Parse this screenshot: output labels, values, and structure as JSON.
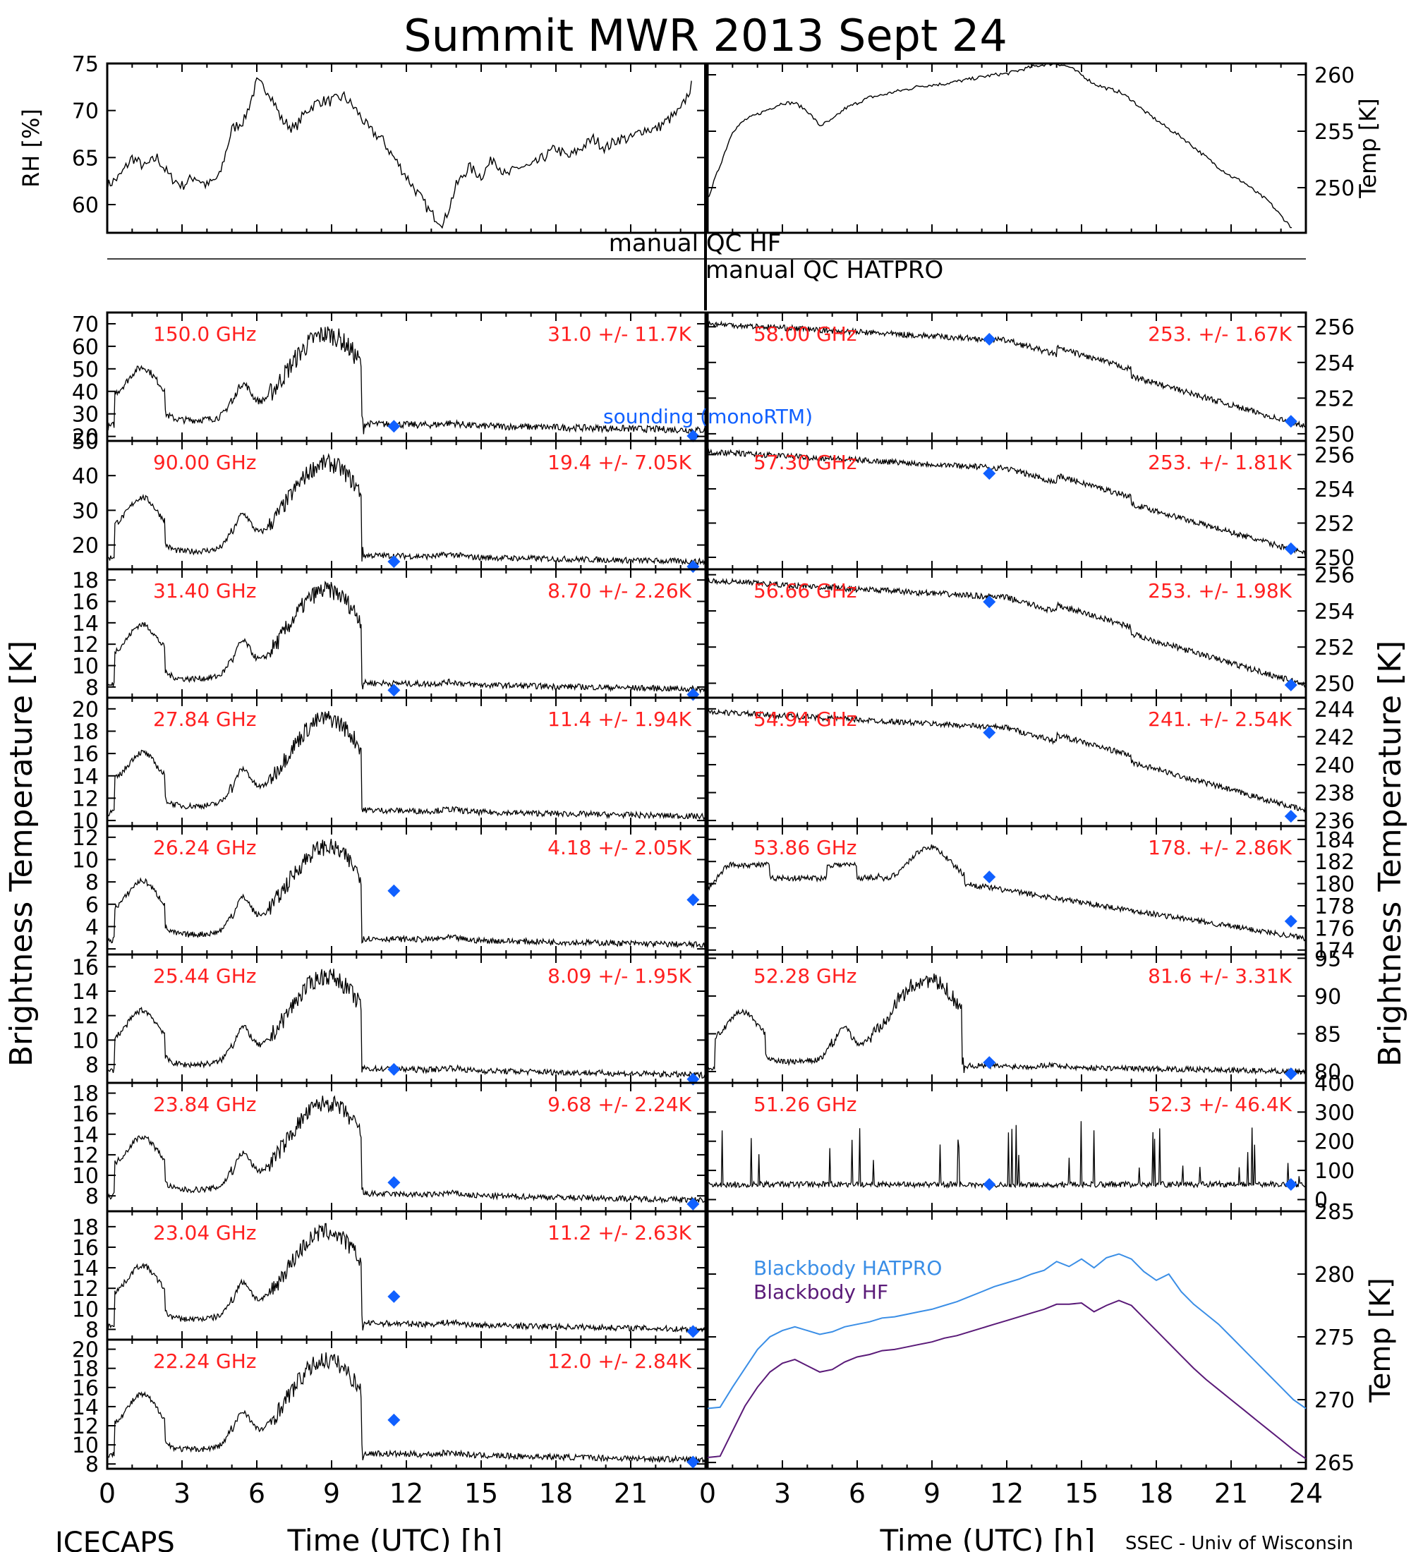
{
  "title": "Summit MWR 2013 Sept 24",
  "footer": {
    "left": "ICECAPS",
    "right": "SSEC - Univ of Wisconsin"
  },
  "colors": {
    "trace": "#000000",
    "channel_label": "#ff2020",
    "sounding": "#1060ff",
    "bb_hatpro": "#3a8ee6",
    "bb_hf": "#5a1a78"
  },
  "left_axis_label": "Brightness Temperature [K]",
  "right_axis_label": "Brightness Temperature [K]",
  "x_axis": {
    "label": "Time (UTC) [h]",
    "ticks": [
      0,
      3,
      6,
      9,
      12,
      15,
      18,
      21
    ],
    "ticks_right": [
      0,
      3,
      6,
      9,
      12,
      15,
      18,
      21,
      24
    ],
    "range": [
      0,
      24
    ]
  },
  "qc": {
    "hf": "manual QC HF",
    "hatpro": "manual QC HATPRO"
  },
  "sounding_label": "sounding (monoRTM)",
  "chart_data": [
    {
      "type": "line",
      "id": "rh",
      "ylabel": "RH [%]",
      "ylim": [
        57,
        75
      ],
      "yticks": [
        60,
        65,
        70,
        75
      ],
      "x": [
        0,
        0.5,
        1,
        1.5,
        2,
        2.5,
        3,
        3.5,
        4,
        4.5,
        5,
        5.5,
        6,
        6.5,
        7,
        7.5,
        8,
        8.5,
        9,
        9.5,
        10,
        10.5,
        11,
        11.5,
        12,
        12.5,
        13,
        13.5,
        14,
        14.5,
        15,
        15.5,
        16,
        16.5,
        17,
        17.5,
        18,
        18.5,
        19,
        19.5,
        20,
        20.5,
        21,
        21.5,
        22,
        22.5,
        23,
        23.5
      ],
      "values": [
        62,
        63,
        65,
        64,
        65,
        63,
        62,
        63,
        62,
        63,
        68,
        69,
        73,
        72,
        69,
        68,
        70,
        71,
        71,
        71.5,
        70,
        68,
        67,
        65,
        63,
        61,
        59,
        58,
        62,
        64,
        63,
        65,
        63,
        64,
        64,
        65,
        66,
        65,
        66,
        67,
        66,
        67,
        67,
        68,
        68,
        69,
        70,
        73
      ]
    },
    {
      "type": "line",
      "id": "air_temp",
      "ylabel": "Temp [K]",
      "ylim": [
        246,
        261
      ],
      "yticks": [
        250,
        255,
        260
      ],
      "x": [
        0,
        0.5,
        1,
        1.5,
        2,
        2.5,
        3,
        3.5,
        4,
        4.5,
        5,
        5.5,
        6,
        6.5,
        7,
        7.5,
        8,
        8.5,
        9,
        9.5,
        10,
        10.5,
        11,
        11.5,
        12,
        12.5,
        13,
        13.5,
        14,
        14.5,
        15,
        15.5,
        16,
        16.5,
        17,
        17.5,
        18,
        18.5,
        19,
        19.5,
        20,
        20.5,
        21,
        21.5,
        22,
        22.5,
        23,
        23.5
      ],
      "values": [
        249,
        252,
        255,
        256,
        256.5,
        257,
        257.5,
        257.5,
        256.8,
        255.5,
        256,
        257,
        257.5,
        258,
        258.2,
        258.5,
        258.7,
        259,
        259.1,
        259.2,
        259.4,
        259.6,
        259.8,
        260,
        260.1,
        260.4,
        260.7,
        260.9,
        261,
        260.7,
        260,
        259.2,
        258.8,
        258.5,
        257.8,
        256.8,
        256,
        255.2,
        254.5,
        253.6,
        252.7,
        251.8,
        251,
        250.5,
        249.6,
        248.8,
        247.5,
        246.3
      ]
    },
    {
      "type": "line",
      "id": "150.0",
      "side": "left",
      "freq_label": "150.0 GHz",
      "stat": "31.0 +/- 11.7K",
      "ylim": [
        18,
        75
      ],
      "yticks": [
        20,
        30,
        40,
        50,
        60,
        70
      ],
      "shape": "wet",
      "lo": 21,
      "hi": 72,
      "noise": 0.06,
      "sounding": [
        [
          11.5,
          24.5
        ],
        [
          23.5,
          20.2
        ]
      ]
    },
    {
      "type": "line",
      "id": "90.00",
      "side": "left",
      "freq_label": "90.00 GHz",
      "stat": "19.4 +/- 7.05K",
      "ylim": [
        13,
        50
      ],
      "yticks": [
        20,
        30,
        40,
        50
      ],
      "shape": "wet",
      "lo": 14,
      "hi": 48,
      "noise": 0.05,
      "sounding": [
        [
          11.5,
          15.2
        ],
        [
          23.5,
          13.8
        ]
      ]
    },
    {
      "type": "line",
      "id": "31.40",
      "side": "left",
      "freq_label": "31.40 GHz",
      "stat": "8.70 +/- 2.26K",
      "ylim": [
        7,
        19
      ],
      "yticks": [
        8,
        10,
        12,
        14,
        16,
        18
      ],
      "shape": "wet",
      "lo": 7.4,
      "hi": 18.5,
      "noise": 0.05,
      "sounding": [
        [
          11.5,
          7.7
        ],
        [
          23.5,
          7.3
        ]
      ]
    },
    {
      "type": "line",
      "id": "27.84",
      "side": "left",
      "freq_label": "27.84 GHz",
      "stat": "11.4 +/- 1.94K",
      "ylim": [
        9.5,
        21
      ],
      "yticks": [
        10,
        12,
        14,
        16,
        18,
        20
      ],
      "shape": "wet",
      "lo": 10,
      "hi": 20.5,
      "noise": 0.05,
      "sounding": []
    },
    {
      "type": "line",
      "id": "26.24",
      "side": "left",
      "freq_label": "26.24 GHz",
      "stat": "4.18 +/- 2.05K",
      "ylim": [
        1.5,
        13
      ],
      "yticks": [
        2,
        4,
        6,
        8,
        10,
        12
      ],
      "shape": "wet",
      "lo": 2,
      "hi": 12.5,
      "noise": 0.05,
      "sounding": [
        [
          11.5,
          7.2
        ],
        [
          23.5,
          6.4
        ]
      ]
    },
    {
      "type": "line",
      "id": "25.44",
      "side": "left",
      "freq_label": "25.44 GHz",
      "stat": "8.09 +/- 1.95K",
      "ylim": [
        6.5,
        17
      ],
      "yticks": [
        8,
        10,
        12,
        14,
        16
      ],
      "shape": "wet",
      "lo": 6.8,
      "hi": 16.5,
      "noise": 0.05,
      "sounding": [
        [
          11.5,
          7.6
        ],
        [
          23.5,
          6.8
        ]
      ]
    },
    {
      "type": "line",
      "id": "23.84",
      "side": "left",
      "freq_label": "23.84 GHz",
      "stat": "9.68 +/- 2.24K",
      "ylim": [
        6.5,
        19
      ],
      "yticks": [
        8,
        10,
        12,
        14,
        16,
        18
      ],
      "shape": "wet",
      "lo": 7.2,
      "hi": 18.5,
      "noise": 0.05,
      "sounding": [
        [
          11.5,
          9.3
        ],
        [
          23.5,
          7.2
        ]
      ]
    },
    {
      "type": "line",
      "id": "23.04",
      "side": "left",
      "freq_label": "23.04 GHz",
      "stat": "11.2 +/- 2.63K",
      "ylim": [
        7,
        19.5
      ],
      "yticks": [
        8,
        10,
        12,
        14,
        16,
        18
      ],
      "shape": "wet",
      "lo": 7.6,
      "hi": 19,
      "noise": 0.05,
      "sounding": [
        [
          11.5,
          11.2
        ],
        [
          23.5,
          7.8
        ]
      ]
    },
    {
      "type": "line",
      "id": "22.24",
      "side": "left",
      "freq_label": "22.24 GHz",
      "stat": "12.0 +/- 2.84K",
      "ylim": [
        7.5,
        21
      ],
      "yticks": [
        8,
        10,
        12,
        14,
        16,
        18,
        20
      ],
      "shape": "wet",
      "lo": 8,
      "hi": 20.5,
      "noise": 0.05,
      "sounding": [
        [
          11.5,
          12.6
        ],
        [
          23.5,
          8.2
        ]
      ]
    },
    {
      "type": "line",
      "id": "58.00",
      "side": "right",
      "freq_label": "58.00 GHz",
      "stat": "253. +/- 1.67K",
      "ylim": [
        249.6,
        256.8
      ],
      "yticks": [
        250,
        252,
        254,
        256
      ],
      "shape": "cool",
      "lo": 250,
      "hi": 256.5,
      "noise": 0.05,
      "sounding": [
        [
          11.3,
          255.3
        ],
        [
          23.4,
          250.7
        ]
      ]
    },
    {
      "type": "line",
      "id": "57.30",
      "side": "right",
      "freq_label": "57.30 GHz",
      "stat": "253. +/- 1.81K",
      "ylim": [
        249.3,
        256.8
      ],
      "yticks": [
        250,
        252,
        254,
        256
      ],
      "shape": "cool",
      "lo": 249.8,
      "hi": 256.5,
      "noise": 0.05,
      "sounding": [
        [
          11.3,
          254.9
        ],
        [
          23.4,
          250.5
        ]
      ]
    },
    {
      "type": "line",
      "id": "56.66",
      "side": "right",
      "freq_label": "56.66 GHz",
      "stat": "253. +/- 1.98K",
      "ylim": [
        249.2,
        256.3
      ],
      "yticks": [
        250,
        252,
        254,
        256
      ],
      "shape": "cool",
      "lo": 249.5,
      "hi": 256,
      "noise": 0.05,
      "sounding": [
        [
          11.3,
          254.5
        ],
        [
          23.4,
          249.9
        ]
      ]
    },
    {
      "type": "line",
      "id": "54.94",
      "side": "right",
      "freq_label": "54.94 GHz",
      "stat": "241. +/- 2.54K",
      "ylim": [
        235.6,
        244.8
      ],
      "yticks": [
        236,
        238,
        240,
        242,
        244
      ],
      "shape": "cool",
      "lo": 236.2,
      "hi": 244.2,
      "noise": 0.05,
      "sounding": [
        [
          11.3,
          242.3
        ],
        [
          23.4,
          236.3
        ]
      ]
    },
    {
      "type": "line",
      "id": "53.86",
      "side": "right",
      "freq_label": "53.86 GHz",
      "stat": "178. +/- 2.86K",
      "ylim": [
        173.6,
        185.2
      ],
      "yticks": [
        174,
        176,
        178,
        180,
        182,
        184
      ],
      "shape": "mid",
      "lo": 174.5,
      "hi": 184.5,
      "noise": 0.05,
      "sounding": [
        [
          11.3,
          180.6
        ],
        [
          23.4,
          176.6
        ]
      ]
    },
    {
      "type": "line",
      "id": "52.28",
      "side": "right",
      "freq_label": "52.28 GHz",
      "stat": "81.6 +/- 3.31K",
      "ylim": [
        78.5,
        95.5
      ],
      "yticks": [
        80,
        85,
        90,
        95
      ],
      "shape": "wet",
      "lo": 79.5,
      "hi": 94,
      "noise": 0.05,
      "sounding": [
        [
          11.3,
          81.2
        ],
        [
          23.4,
          79.7
        ]
      ]
    },
    {
      "type": "line",
      "id": "51.26",
      "side": "right",
      "freq_label": "51.26 GHz",
      "stat": "52.3 +/- 46.4K",
      "ylim": [
        -40,
        400
      ],
      "yticks": [
        0,
        100,
        200,
        300,
        400
      ],
      "shape": "spiky",
      "lo": 40,
      "hi": 60,
      "noise": 0.05,
      "sounding": [
        [
          11.3,
          52
        ],
        [
          23.4,
          52
        ]
      ]
    },
    {
      "type": "line",
      "id": "blackbody",
      "ylabel": "Temp [K]",
      "ylim": [
        264.5,
        285
      ],
      "yticks": [
        265,
        270,
        275,
        280,
        285
      ],
      "x": [
        0,
        0.5,
        1,
        1.5,
        2,
        2.5,
        3,
        3.5,
        4,
        4.5,
        5,
        5.5,
        6,
        6.5,
        7,
        7.5,
        8,
        8.5,
        9,
        9.5,
        10,
        10.5,
        11,
        11.5,
        12,
        12.5,
        13,
        13.5,
        14,
        14.5,
        15,
        15.5,
        16,
        16.5,
        17,
        17.5,
        18,
        18.5,
        19,
        19.5,
        20,
        20.5,
        21,
        21.5,
        22,
        22.5,
        23,
        23.5,
        24
      ],
      "series": [
        {
          "name": "Blackbody HATPRO",
          "values": [
            269.3,
            269.4,
            271,
            272.5,
            274,
            275,
            275.5,
            275.8,
            275.5,
            275.2,
            275.4,
            275.8,
            276,
            276.2,
            276.5,
            276.6,
            276.8,
            277,
            277.2,
            277.5,
            277.8,
            278.2,
            278.6,
            279,
            279.3,
            279.6,
            280,
            280.3,
            281,
            280.6,
            281.2,
            280.5,
            281.3,
            281.6,
            281.2,
            280.2,
            279.5,
            280,
            278.6,
            277.6,
            276.8,
            276,
            275,
            274,
            273,
            272,
            271,
            270,
            269.3
          ]
        },
        {
          "name": "Blackbody HF",
          "values": [
            265.4,
            265.5,
            267.5,
            269.5,
            271,
            272.2,
            272.9,
            273.2,
            272.7,
            272.2,
            272.4,
            273,
            273.4,
            273.6,
            273.9,
            274,
            274.2,
            274.4,
            274.6,
            274.9,
            275.1,
            275.4,
            275.7,
            276,
            276.3,
            276.6,
            276.9,
            277.2,
            277.6,
            277.6,
            277.7,
            277,
            277.5,
            277.9,
            277.5,
            276.5,
            275.5,
            274.5,
            273.5,
            272.5,
            271.6,
            270.8,
            270,
            269.2,
            268.4,
            267.6,
            266.8,
            266,
            265.3
          ]
        }
      ]
    }
  ]
}
